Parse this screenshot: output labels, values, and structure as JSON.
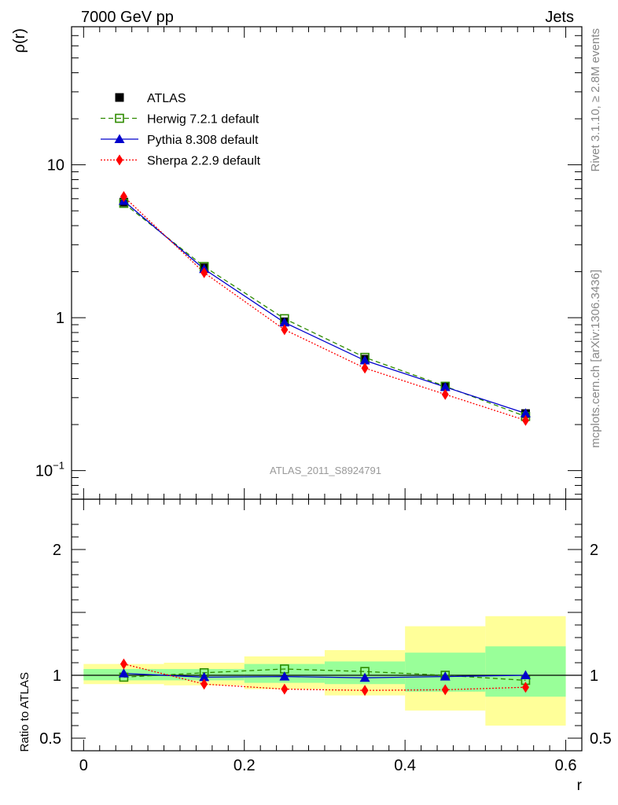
{
  "header": {
    "left": "7000 GeV pp",
    "right": "Jets"
  },
  "side_text": {
    "rivet": "Rivet 3.1.10, ≥ 2.8M events",
    "mcplots": "mcplots.cern.ch [arXiv:1306.3436]"
  },
  "analysis_label": "ATLAS_2011_S8924791",
  "colors": {
    "atlas": "#000000",
    "herwig": "#2e8b00",
    "pythia": "#0000cc",
    "sherpa": "#ff0000",
    "band_inner": "#99ff99",
    "band_outer": "#ffff99"
  },
  "chart_data": [
    {
      "type": "line",
      "panel": "main",
      "ylabel": "ρ(r)",
      "yscale": "log",
      "ylim": [
        0.065,
        80
      ],
      "xlim": [
        -0.015,
        0.62
      ],
      "ytick_labels": [
        {
          "value": 10,
          "base": "10",
          "exp": ""
        },
        {
          "value": 1,
          "base": "1",
          "exp": ""
        },
        {
          "value": 0.1,
          "base": "10",
          "exp": "−1"
        }
      ],
      "legend_placement": "top-left",
      "x": [
        0.05,
        0.15,
        0.25,
        0.35,
        0.45,
        0.55
      ],
      "series": [
        {
          "name": "ATLAS",
          "key": "atlas",
          "style": "points",
          "marker": "square",
          "values": [
            5.7,
            2.12,
            0.94,
            0.535,
            0.355,
            0.236
          ]
        },
        {
          "name": "Herwig 7.2.1 default",
          "key": "herwig",
          "style": "dashed",
          "marker": "open-square",
          "values": [
            5.6,
            2.16,
            0.985,
            0.55,
            0.356,
            0.226
          ]
        },
        {
          "name": "Pythia 8.308 default",
          "key": "pythia",
          "style": "solid",
          "marker": "triangle",
          "values": [
            5.8,
            2.08,
            0.93,
            0.525,
            0.352,
            0.237
          ]
        },
        {
          "name": "Sherpa 2.2.9 default",
          "key": "sherpa",
          "style": "dotted",
          "marker": "diamond",
          "values": [
            6.2,
            1.97,
            0.835,
            0.468,
            0.315,
            0.213
          ]
        }
      ]
    },
    {
      "type": "line",
      "panel": "ratio",
      "ylabel": "Ratio to ATLAS",
      "xlabel": "r",
      "ylim": [
        0.4,
        2.4
      ],
      "ytick_labels": [
        "2",
        "1",
        "0.5"
      ],
      "xtick_labels": [
        "0",
        "0.2",
        "0.4",
        "0.6"
      ],
      "x": [
        0.05,
        0.15,
        0.25,
        0.35,
        0.45,
        0.55
      ],
      "bands": {
        "bins": [
          [
            0,
            0.1
          ],
          [
            0.1,
            0.2
          ],
          [
            0.2,
            0.3
          ],
          [
            0.3,
            0.4
          ],
          [
            0.4,
            0.5
          ],
          [
            0.5,
            0.6
          ]
        ],
        "inner": [
          [
            0.96,
            1.05
          ],
          [
            0.96,
            1.05
          ],
          [
            0.94,
            1.09
          ],
          [
            0.93,
            1.11
          ],
          [
            0.87,
            1.18
          ],
          [
            0.83,
            1.23
          ]
        ],
        "outer": [
          [
            0.93,
            1.09
          ],
          [
            0.92,
            1.1
          ],
          [
            0.89,
            1.15
          ],
          [
            0.84,
            1.2
          ],
          [
            0.72,
            1.39
          ],
          [
            0.6,
            1.47
          ]
        ]
      },
      "series": [
        {
          "name": "Herwig 7.2.1 default",
          "key": "herwig",
          "style": "dashed",
          "marker": "open-square",
          "values": [
            0.985,
            1.02,
            1.05,
            1.03,
            1.0,
            0.96
          ]
        },
        {
          "name": "Pythia 8.308 default",
          "key": "pythia",
          "style": "solid",
          "marker": "triangle",
          "values": [
            1.015,
            0.985,
            0.99,
            0.98,
            0.99,
            1.0
          ]
        },
        {
          "name": "Sherpa 2.2.9 default",
          "key": "sherpa",
          "style": "dotted",
          "marker": "diamond",
          "values": [
            1.09,
            0.93,
            0.89,
            0.88,
            0.885,
            0.905
          ]
        }
      ]
    }
  ]
}
